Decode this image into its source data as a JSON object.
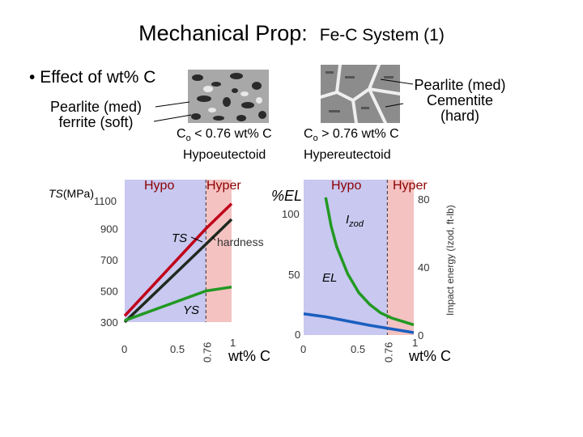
{
  "title": {
    "main": "Mechanical Prop:",
    "sub": "Fe-C System (1)"
  },
  "bullet": {
    "marker": "•",
    "text": "Effect of wt% C"
  },
  "left_micro": {
    "label_lines": [
      "Pearlite (med)",
      "ferrite (soft)"
    ],
    "composition": "C",
    "composition_sub": "o",
    "composition_rest": " < 0.76 wt% C",
    "type": "Hypoeutectoid"
  },
  "right_micro": {
    "label_lines": [
      "Pearlite (med)",
      "Cementite",
      "(hard)"
    ],
    "composition": "C",
    "composition_sub": "o",
    "composition_rest": " > 0.76 wt% C",
    "type": "Hypereutectoid"
  },
  "colors": {
    "hypo_region": "#c8c8f0",
    "hyper_region": "#f5c2c2",
    "region_label": "#8b0000",
    "ts": "#c0001a",
    "hardness": "#1e2a1e",
    "ys": "#229922",
    "el": "#229922",
    "izod": "#1a5fbf"
  },
  "chart_data": [
    {
      "type": "line",
      "region_labels": [
        "Hypo",
        "Hyper"
      ],
      "ylabel": "TS(MPa)",
      "xlabel": "wt% C",
      "xlim": [
        0,
        1
      ],
      "ylim": [
        300,
        1100
      ],
      "x_ticks": [
        "0",
        "0.5",
        "0.76",
        "1"
      ],
      "y_ticks": [
        "1100",
        "900",
        "700",
        "500",
        "300"
      ],
      "eutectoid": 0.76,
      "series": [
        {
          "name": "TS",
          "x": [
            0.0,
            0.76,
            1.0
          ],
          "values": [
            340,
            900,
            1060
          ]
        },
        {
          "name": "hardness",
          "x": [
            0.0,
            0.76,
            1.0
          ],
          "values": [
            300,
            800,
            960
          ]
        },
        {
          "name": "YS",
          "x": [
            0.0,
            0.76,
            1.0
          ],
          "values": [
            310,
            500,
            525
          ]
        }
      ]
    },
    {
      "type": "line",
      "region_labels": [
        "Hypo",
        "Hyper"
      ],
      "ylabel": "%EL",
      "y2label": "Impact energy (Izod, ft-lb)",
      "xlabel": "wt% C",
      "xlim": [
        0,
        1
      ],
      "ylim": [
        0,
        100
      ],
      "y2lim": [
        0,
        80
      ],
      "x_ticks": [
        "0",
        "0.5",
        "0.76",
        "1"
      ],
      "y_ticks": [
        "100",
        "50",
        "0"
      ],
      "y2_ticks": [
        "80",
        "40",
        "0"
      ],
      "eutectoid": 0.76,
      "series": [
        {
          "name": "I",
          "name_sub": "zod",
          "axis": "right",
          "x": [
            0.2,
            0.25,
            0.3,
            0.4,
            0.5,
            0.6,
            0.7,
            0.8,
            0.9,
            1.0
          ],
          "values": [
            81,
            64,
            52,
            36,
            25,
            18,
            13,
            10,
            8,
            6
          ]
        },
        {
          "name": "EL",
          "axis": "left",
          "x": [
            0.0,
            0.2,
            0.4,
            0.6,
            0.8,
            1.0
          ],
          "values": [
            35,
            30,
            23,
            16,
            10,
            4
          ]
        }
      ]
    }
  ]
}
